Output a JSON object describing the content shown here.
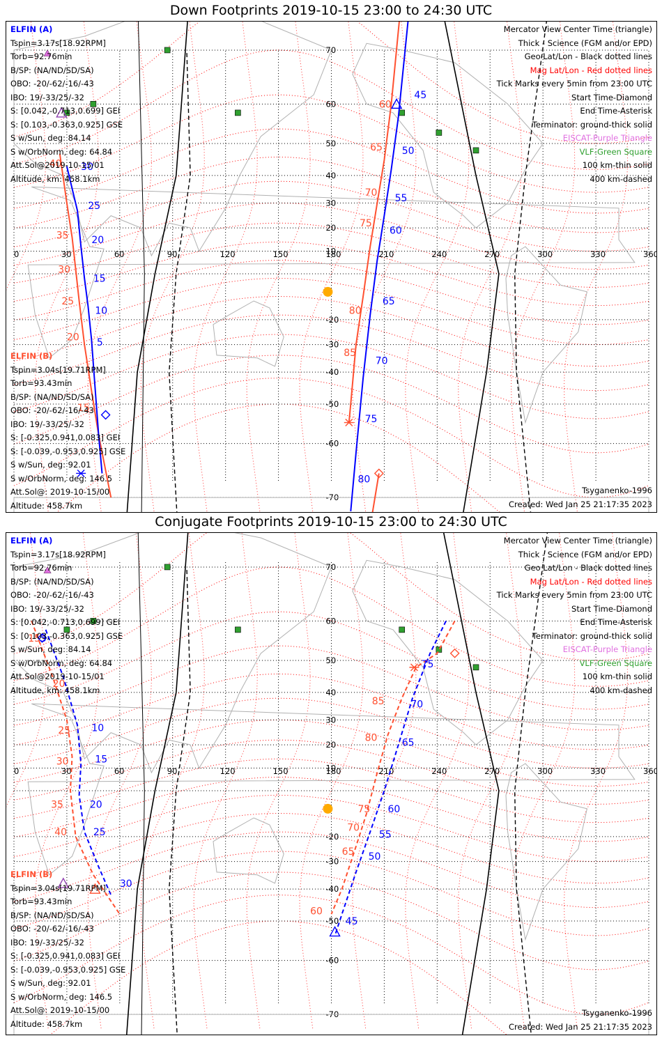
{
  "panels": [
    {
      "id": "down",
      "title": "Down Footprints 2019-10-15 23:00 to 24:30 UTC",
      "elfin_a": {
        "label": "ELFIN (A)",
        "lines": [
          "Tspin=3.17s[18.92RPM]",
          "Torb=92.76min",
          "B/SP: (NA/ND/SD/SA)",
          "OBO: -20/-62/-16/-43",
          "IBO: 19/-33/25/-32",
          "S: [0.042,-0.713,0.699] GEI",
          "S: [0.103,-0.363,0.925] GSE",
          "S w/Sun, deg: 84.14",
          "S w/OrbNorm, deg: 64.84",
          "Att.Sol@2019-10-15/01",
          "Altitude, km: 458.1km"
        ]
      },
      "elfin_b": {
        "label": "ELFIN (B)",
        "lines": [
          "Tspin=3.04s[19.71RPM]",
          "Torb=93.43min",
          "B/SP: (NA/ND/SD/SA)",
          "OBO: -20/-62/-16/-43",
          "IBO: 19/-33/25/-32",
          "S: [-0.325,0.941,0.083] GEI",
          "S: [-0.039,-0.953,0.925] GSE",
          "S w/Sun, deg: 92.01",
          "S w/OrbNorm, deg: 146.5",
          "Att.Sol@: 2019-10-15/00",
          "Altitude: 458.7km"
        ]
      },
      "footer_left": "",
      "model": "Tsyganenko-1996",
      "created": "Created: Wed Jan 25 21:17:35 2023",
      "trackA": {
        "points": [
          [
            30,
            43
          ],
          [
            36,
            27
          ],
          [
            38,
            12
          ],
          [
            40,
            -2
          ],
          [
            42,
            -14
          ],
          [
            44,
            -28
          ],
          [
            46,
            -45
          ],
          [
            48,
            -58
          ],
          [
            50,
            -66
          ]
        ],
        "labels": [
          {
            "t": "30",
            "lon": 38,
            "lat": 43
          },
          {
            "t": "25",
            "lon": 42,
            "lat": 29
          },
          {
            "t": "20",
            "lon": 44,
            "lat": 15
          },
          {
            "t": "15",
            "lon": 45,
            "lat": -2
          },
          {
            "t": "10",
            "lon": 46,
            "lat": -16
          },
          {
            "t": "5",
            "lon": 47,
            "lat": -29
          }
        ],
        "start": [
          52,
          -53
        ],
        "end": null,
        "triangle": [
          27,
          58
        ]
      },
      "trackB": {
        "points": [
          [
            26,
            47
          ],
          [
            30,
            30
          ],
          [
            33,
            16
          ],
          [
            35,
            2
          ],
          [
            37,
            -12
          ],
          [
            40,
            -30
          ],
          [
            44,
            -46
          ],
          [
            48,
            -58
          ],
          [
            55,
            -70
          ]
        ],
        "labels": [
          {
            "t": "40",
            "lon": 20,
            "lat": 44
          },
          {
            "t": "35",
            "lon": 24,
            "lat": 17
          },
          {
            "t": "30",
            "lon": 25,
            "lat": 2
          },
          {
            "t": "25",
            "lon": 27,
            "lat": -12
          },
          {
            "t": "20",
            "lon": 30,
            "lat": -27
          },
          {
            "t": "15",
            "lon": 36,
            "lat": -51
          }
        ],
        "start": null,
        "end": null
      },
      "trackA2": {
        "points": [
          [
            224,
            75
          ],
          [
            218,
            57
          ],
          [
            214,
            42
          ],
          [
            210,
            25
          ],
          [
            206,
            6
          ],
          [
            202,
            -18
          ],
          [
            198,
            -42
          ],
          [
            194,
            -62
          ],
          [
            191,
            -72
          ]
        ],
        "labels": [
          {
            "t": "45",
            "lon": 227,
            "lat": 62
          },
          {
            "t": "50",
            "lon": 220,
            "lat": 48
          },
          {
            "t": "55",
            "lon": 216,
            "lat": 32
          },
          {
            "t": "60",
            "lon": 213,
            "lat": 19
          },
          {
            "t": "65",
            "lon": 209,
            "lat": -12
          },
          {
            "t": "70",
            "lon": 205,
            "lat": -36
          },
          {
            "t": "75",
            "lon": 199,
            "lat": -54
          },
          {
            "t": "80",
            "lon": 195,
            "lat": -67
          }
        ],
        "triangle": [
          217,
          60
        ]
      },
      "trackB2": {
        "points": [
          [
            219,
            75
          ],
          [
            214,
            60
          ],
          [
            210,
            45
          ],
          [
            206,
            30
          ],
          [
            202,
            12
          ],
          [
            198,
            -10
          ],
          [
            194,
            -30
          ],
          [
            191,
            -50
          ],
          [
            190,
            -55
          ]
        ],
        "labels": [
          {
            "t": "60",
            "lon": 207,
            "lat": 60
          },
          {
            "t": "65",
            "lon": 202,
            "lat": 49
          },
          {
            "t": "70",
            "lon": 199,
            "lat": 34
          },
          {
            "t": "75",
            "lon": 196,
            "lat": 22
          },
          {
            "t": "80",
            "lon": 190,
            "lat": -16
          },
          {
            "t": "85",
            "lon": 187,
            "lat": -33
          }
        ],
        "asterisk": [
          190,
          -55
        ],
        "diamond": [
          207,
          -66
        ],
        "tail": [
          [
            207,
            -66
          ],
          [
            202,
            -74
          ]
        ]
      },
      "sun": [
        178,
        -8
      ]
    },
    {
      "id": "conjugate",
      "title": "Conjugate Footprints 2019-10-15 23:00 to 24:30 UTC",
      "elfin_a": {
        "label": "ELFIN (A)",
        "lines": [
          "Tspin=3.17s[18.92RPM]",
          "Torb=92.76min",
          "B/SP: (NA/ND/SD/SA)",
          "OBO: -20/-62/-16/-43",
          "IBO: 19/-33/25/-32",
          "S: [0.042,-0.713,0.699] GEI",
          "S: [0.103,-0.363,0.925] GSE",
          "S w/Sun, deg: 84.14",
          "S w/OrbNorm, deg: 64.84",
          "Att.Sol@2019-10-15/01",
          "Altitude, km: 458.1km"
        ]
      },
      "elfin_b": {
        "label": "ELFIN (B)",
        "lines": [
          "Tspin=3.04s[19.71RPM]",
          "Torb=93.43min",
          "B/SP: (NA/ND/SD/SA)",
          "OBO: -20/-62/-16/-43",
          "IBO: 19/-33/25/-32",
          "S: [-0.325,0.941,0.083] GEI",
          "S: [-0.039,-0.953,0.925] GSE",
          "S w/Sun, deg: 92.01",
          "S w/OrbNorm, deg: 146.5",
          "Att.Sol@: 2019-10-15/00",
          "Altitude: 458.7km"
        ]
      },
      "model": "Tsyganenko-1996",
      "created": "Created: Wed Jan 25 21:17:35 2023"
    }
  ],
  "legend": [
    {
      "text": "Mercator View Center Time (triangle)",
      "color": "#000000"
    },
    {
      "text": "Thick - Science (FGM and/or EPD)",
      "color": "#000000"
    },
    {
      "text": "Geo Lat/Lon - Black dotted lines",
      "color": "#000000"
    },
    {
      "text": "Mag Lat/Lon - Red dotted lines",
      "color": "#ff0000"
    },
    {
      "text": "Tick Marks every 5min from 23:00 UTC",
      "color": "#000000"
    },
    {
      "text": "Start Time-Diamond",
      "color": "#000000"
    },
    {
      "text": "End Time-Asterisk",
      "color": "#000000"
    },
    {
      "text": "Terminator: ground-thick solid",
      "color": "#000000"
    },
    {
      "text": "EISCAT-Purple Triangle",
      "color": "#e070e0"
    },
    {
      "text": "VLF-Green Square",
      "color": "#30a030"
    },
    {
      "text": "100 km-thin solid",
      "color": "#000000"
    },
    {
      "text": "400 km-dashed",
      "color": "#000000"
    }
  ],
  "axes": {
    "lon_ticks": [
      "0",
      "30",
      "60",
      "90",
      "120",
      "150",
      "180",
      "210",
      "240",
      "270",
      "300",
      "330",
      "360"
    ],
    "lat_ticks": [
      "70",
      "60",
      "50",
      "40",
      "30",
      "20",
      "10",
      "-20",
      "-30",
      "-40",
      "-50",
      "-60",
      "-70"
    ]
  },
  "colors": {
    "elfin_a": "#0000ff",
    "elfin_b": "#ff5030",
    "mag_grid": "#ff0000",
    "eiscat": "#e070e0",
    "vlf": "#30a030",
    "sun": "#ffaa00"
  },
  "conj": {
    "trackA_labels": [
      {
        "t": "5",
        "lon": 15,
        "lat": 56
      },
      {
        "t": "10",
        "lon": 44,
        "lat": 27
      },
      {
        "t": "15",
        "lon": 46,
        "lat": 14
      },
      {
        "t": "20",
        "lon": 43,
        "lat": -6
      },
      {
        "t": "25",
        "lon": 45,
        "lat": -18
      },
      {
        "t": "30",
        "lon": 60,
        "lat": -38
      }
    ],
    "trackB_labels": [
      {
        "t": "15",
        "lon": 8,
        "lat": 56
      },
      {
        "t": "20",
        "lon": 22,
        "lat": 43
      },
      {
        "t": "25",
        "lon": 25,
        "lat": 26
      },
      {
        "t": "30",
        "lon": 24,
        "lat": 13
      },
      {
        "t": "35",
        "lon": 21,
        "lat": -6
      },
      {
        "t": "40",
        "lon": 23,
        "lat": -18
      }
    ],
    "trackA2_labels": [
      {
        "t": "75",
        "lon": 231,
        "lat": 49
      },
      {
        "t": "70",
        "lon": 225,
        "lat": 36
      },
      {
        "t": "65",
        "lon": 220,
        "lat": 21
      },
      {
        "t": "60",
        "lon": 212,
        "lat": -8
      },
      {
        "t": "55",
        "lon": 207,
        "lat": -19
      },
      {
        "t": "50",
        "lon": 201,
        "lat": -28
      },
      {
        "t": "45",
        "lon": 188,
        "lat": -50
      }
    ],
    "trackB2_labels": [
      {
        "t": "85",
        "lon": 203,
        "lat": 37
      },
      {
        "t": "80",
        "lon": 199,
        "lat": 23
      },
      {
        "t": "75",
        "lon": 195,
        "lat": -8
      },
      {
        "t": "70",
        "lon": 189,
        "lat": -16
      },
      {
        "t": "65",
        "lon": 186,
        "lat": -26
      },
      {
        "t": "60",
        "lon": 168,
        "lat": -47
      }
    ]
  }
}
